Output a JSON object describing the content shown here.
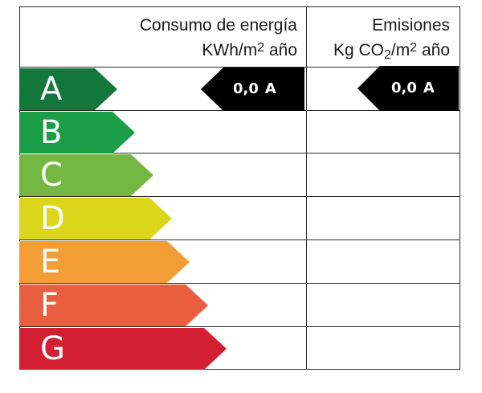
{
  "header": {
    "consumo": {
      "title": "Consumo de energía",
      "unit_pre": "KWh/m",
      "unit_sup": "2",
      "unit_post": " año"
    },
    "emisiones": {
      "title": "Emisiones",
      "unit_pre": "Kg CO",
      "unit_sub": "2",
      "unit_mid": "/m",
      "unit_sup": "2",
      "unit_post": " año"
    }
  },
  "classes": [
    {
      "letter": "A",
      "color": "#13763b"
    },
    {
      "letter": "B",
      "color": "#1c9d48"
    },
    {
      "letter": "C",
      "color": "#74b843"
    },
    {
      "letter": "D",
      "color": "#dcd61b"
    },
    {
      "letter": "E",
      "color": "#f29d36"
    },
    {
      "letter": "F",
      "color": "#e85e3f"
    },
    {
      "letter": "G",
      "color": "#d21f31"
    }
  ],
  "ratings": {
    "consumo": {
      "value": "0,0",
      "letter": "A",
      "color": "#000000"
    },
    "emisiones": {
      "value": "0,0",
      "letter": "A",
      "color": "#000000"
    }
  }
}
